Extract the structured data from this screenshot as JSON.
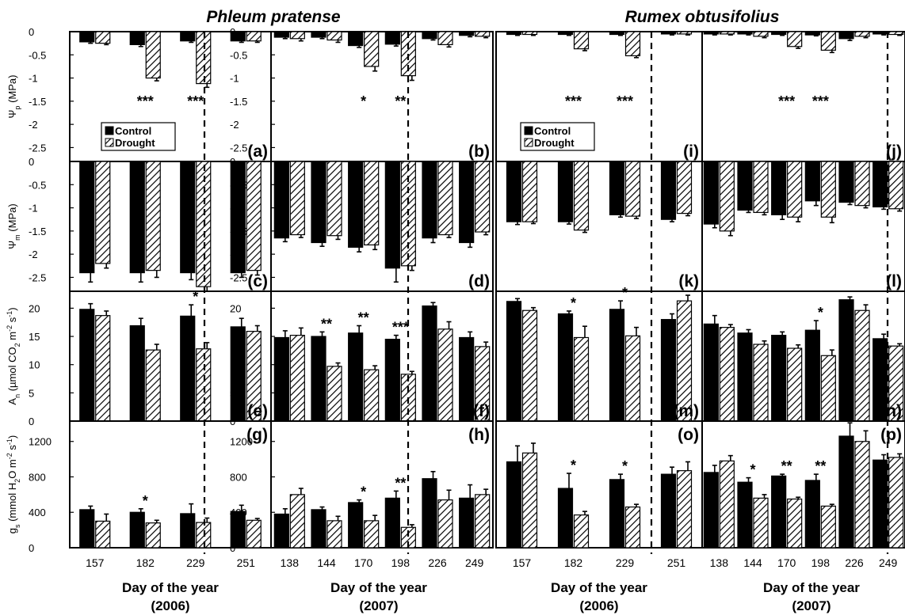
{
  "colors": {
    "control": "#000000",
    "drought_stripe": "#000000",
    "background": "#ffffff"
  },
  "titles": {
    "left": "Phleum pratense",
    "right": "Rumex obtusifolius"
  },
  "ylabels": {
    "psi_p": [
      "Ψ",
      "p",
      " (MPa)"
    ],
    "psi_m": [
      "Ψ",
      "m",
      " (MPa)"
    ],
    "an": [
      "A",
      "n",
      " (µmol CO",
      "2",
      " m",
      "-2",
      " s",
      "-1",
      ")"
    ],
    "gs": [
      "g",
      "s",
      " (mmol H",
      "2",
      "O m",
      "-2",
      " s",
      "-1",
      ")"
    ]
  },
  "xtitles": {
    "y2006": [
      "Day of the year",
      "(2006)"
    ],
    "y2007": [
      "Day of the year",
      "(2007)"
    ]
  },
  "legend": {
    "control": "Control",
    "drought": "Drought"
  },
  "chart_data": [
    {
      "type": "bar",
      "species": "Phleum pratense",
      "year": "2006",
      "days": [
        "157",
        "182",
        "229",
        "251"
      ],
      "rows": [
        {
          "var": "psi_p",
          "panel": "(a)",
          "ylim": [
            -2.8,
            0
          ],
          "ticks": [
            "0",
            "-0.5",
            "-1",
            "-1.5",
            "-2",
            "-2.5"
          ],
          "series": [
            {
              "name": "Control",
              "values": [
                -0.22,
                -0.28,
                -0.2,
                -0.2
              ],
              "err": [
                0.03,
                0.04,
                0.03,
                0.03
              ]
            },
            {
              "name": "Drought",
              "values": [
                -0.25,
                -1.0,
                -1.12,
                -0.2
              ],
              "err": [
                0.03,
                0.06,
                0.08,
                0.03
              ]
            }
          ],
          "stars": [
            "",
            "***",
            "***",
            ""
          ]
        },
        {
          "var": "psi_m",
          "panel": "(c)",
          "ylim": [
            -2.8,
            0
          ],
          "ticks": [
            "0",
            "-0.5",
            "-1",
            "-1.5",
            "-2",
            "-2.5"
          ],
          "series": [
            {
              "name": "Control",
              "values": [
                -2.4,
                -2.4,
                -2.4,
                -2.4
              ],
              "err": [
                0.2,
                0.2,
                0.15,
                0.1
              ]
            },
            {
              "name": "Drought",
              "values": [
                -2.2,
                -2.35,
                -2.7,
                -2.35
              ],
              "err": [
                0.1,
                0.15,
                0.1,
                0.1
              ]
            }
          ],
          "stars": [
            "",
            "",
            "",
            ""
          ]
        },
        {
          "var": "an",
          "panel": "(e)",
          "ylim": [
            0,
            23
          ],
          "ticks": [
            "0",
            "5",
            "10",
            "15",
            "20"
          ],
          "series": [
            {
              "name": "Control",
              "values": [
                19.8,
                16.9,
                18.6,
                16.7
              ],
              "err": [
                1.0,
                1.3,
                2.0,
                1.5
              ]
            },
            {
              "name": "Drought",
              "values": [
                18.7,
                12.6,
                12.8,
                15.9
              ],
              "err": [
                0.8,
                1.0,
                1.1,
                1.0
              ]
            }
          ],
          "stars": [
            "",
            "",
            "*",
            ""
          ]
        },
        {
          "var": "gs",
          "panel": "(g)",
          "ylim": [
            0,
            1430
          ],
          "ticks": [
            "0",
            "400",
            "800",
            "1200"
          ],
          "series": [
            {
              "name": "Control",
              "values": [
                430,
                400,
                385,
                410
              ],
              "err": [
                40,
                40,
                110,
                70
              ]
            },
            {
              "name": "Drought",
              "values": [
                300,
                280,
                285,
                310
              ],
              "err": [
                80,
                30,
                50,
                20
              ]
            }
          ],
          "stars": [
            "",
            "*",
            "",
            ""
          ]
        }
      ]
    },
    {
      "type": "bar",
      "species": "Phleum pratense",
      "year": "2007",
      "days": [
        "138",
        "144",
        "170",
        "198",
        "226",
        "249"
      ],
      "rows": [
        {
          "var": "psi_p",
          "panel": "(b)",
          "ylim": [
            -2.8,
            0
          ],
          "ticks": [
            "0",
            "-0.5",
            "-1",
            "-1.5",
            "-2",
            "-2.5"
          ],
          "series": [
            {
              "name": "Control",
              "values": [
                -0.12,
                -0.12,
                -0.3,
                -0.27,
                -0.15,
                -0.08
              ],
              "err": [
                0.03,
                0.03,
                0.04,
                0.04,
                0.03,
                0.03
              ]
            },
            {
              "name": "Drought",
              "values": [
                -0.15,
                -0.18,
                -0.75,
                -0.95,
                -0.28,
                -0.1
              ],
              "err": [
                0.05,
                0.05,
                0.1,
                0.1,
                0.05,
                0.03
              ]
            }
          ],
          "stars": [
            "",
            "",
            "*",
            "**",
            "",
            ""
          ]
        },
        {
          "var": "psi_m",
          "panel": "(d)",
          "ylim": [
            -2.8,
            0
          ],
          "ticks": [
            "0",
            "-0.5",
            "-1",
            "-1.5",
            "-2",
            "-2.5"
          ],
          "series": [
            {
              "name": "Control",
              "values": [
                -1.65,
                -1.75,
                -1.85,
                -2.3,
                -1.65,
                -1.75
              ],
              "err": [
                0.08,
                0.08,
                0.1,
                0.3,
                0.1,
                0.1
              ]
            },
            {
              "name": "Drought",
              "values": [
                -1.58,
                -1.6,
                -1.8,
                -2.25,
                -1.58,
                -1.52
              ],
              "err": [
                0.06,
                0.08,
                0.1,
                0.1,
                0.06,
                0.06
              ]
            }
          ],
          "stars": [
            "",
            "",
            "",
            "",
            "",
            ""
          ]
        },
        {
          "var": "an",
          "panel": "(f)",
          "ylim": [
            0,
            23
          ],
          "ticks": [
            "0",
            "5",
            "10",
            "15",
            "20"
          ],
          "series": [
            {
              "name": "Control",
              "values": [
                14.8,
                15.0,
                15.6,
                14.5,
                20.4,
                14.8
              ],
              "err": [
                1.2,
                0.8,
                1.3,
                0.7,
                0.6,
                1.0
              ]
            },
            {
              "name": "Drought",
              "values": [
                15.2,
                9.7,
                9.1,
                8.3,
                16.3,
                13.2
              ],
              "err": [
                1.3,
                0.6,
                0.7,
                0.5,
                1.3,
                0.8
              ]
            }
          ],
          "stars": [
            "",
            "**",
            "**",
            "***",
            "",
            ""
          ]
        },
        {
          "var": "gs",
          "panel": "(h)",
          "ylim": [
            0,
            1430
          ],
          "ticks": [
            "0",
            "400",
            "800",
            "1200"
          ],
          "series": [
            {
              "name": "Control",
              "values": [
                380,
                430,
                510,
                560,
                780,
                560
              ],
              "err": [
                60,
                30,
                30,
                80,
                80,
                150
              ]
            },
            {
              "name": "Drought",
              "values": [
                600,
                305,
                305,
                230,
                540,
                600
              ],
              "err": [
                70,
                50,
                60,
                30,
                110,
                60
              ]
            }
          ],
          "stars": [
            "",
            "",
            "*",
            "**",
            "",
            ""
          ]
        }
      ]
    },
    {
      "type": "bar",
      "species": "Rumex obtusifolius",
      "year": "2006",
      "days": [
        "157",
        "182",
        "229",
        "251"
      ],
      "rows": [
        {
          "var": "psi_p",
          "panel": "(i)",
          "ylim": [
            -2.8,
            0
          ],
          "ticks": [],
          "series": [
            {
              "name": "Control",
              "values": [
                -0.06,
                -0.06,
                -0.06,
                -0.05
              ],
              "err": [
                0.02,
                0.02,
                0.02,
                0.02
              ]
            },
            {
              "name": "Drought",
              "values": [
                -0.06,
                -0.37,
                -0.52,
                -0.05
              ],
              "err": [
                0.02,
                0.04,
                0.04,
                0.02
              ]
            }
          ],
          "stars": [
            "",
            "***",
            "***",
            ""
          ]
        },
        {
          "var": "psi_m",
          "panel": "(k)",
          "ylim": [
            -2.8,
            0
          ],
          "ticks": [],
          "series": [
            {
              "name": "Control",
              "values": [
                -1.3,
                -1.3,
                -1.15,
                -1.25
              ],
              "err": [
                0.06,
                0.05,
                0.05,
                0.05
              ]
            },
            {
              "name": "Drought",
              "values": [
                -1.3,
                -1.48,
                -1.18,
                -1.12
              ],
              "err": [
                0.04,
                0.05,
                0.05,
                0.05
              ]
            }
          ],
          "stars": [
            "",
            "",
            "",
            ""
          ]
        },
        {
          "var": "an",
          "panel": "(m)",
          "ylim": [
            0,
            23
          ],
          "ticks": [],
          "series": [
            {
              "name": "Control",
              "values": [
                21.2,
                19.0,
                19.8,
                18.0
              ],
              "err": [
                0.5,
                0.5,
                1.5,
                1.0
              ]
            },
            {
              "name": "Drought",
              "values": [
                19.6,
                14.8,
                15.1,
                21.3
              ],
              "err": [
                0.5,
                2.0,
                1.5,
                1.0
              ]
            }
          ],
          "stars": [
            "",
            "*",
            "*",
            ""
          ]
        },
        {
          "var": "gs",
          "panel": "(o)",
          "ylim": [
            0,
            1430
          ],
          "ticks": [],
          "series": [
            {
              "name": "Control",
              "values": [
                970,
                670,
                770,
                830
              ],
              "err": [
                180,
                170,
                60,
                80
              ]
            },
            {
              "name": "Drought",
              "values": [
                1070,
                370,
                460,
                870
              ],
              "err": [
                110,
                40,
                30,
                100
              ]
            }
          ],
          "stars": [
            "",
            "*",
            "*",
            ""
          ]
        }
      ]
    },
    {
      "type": "bar",
      "species": "Rumex obtusifolius",
      "year": "2007",
      "days": [
        "138",
        "144",
        "170",
        "198",
        "226",
        "249"
      ],
      "rows": [
        {
          "var": "psi_p",
          "panel": "(j)",
          "ylim": [
            -2.8,
            0
          ],
          "ticks": [],
          "series": [
            {
              "name": "Control",
              "values": [
                -0.05,
                -0.05,
                -0.06,
                -0.07,
                -0.15,
                -0.05
              ],
              "err": [
                0.02,
                0.02,
                0.02,
                0.02,
                0.04,
                0.02
              ]
            },
            {
              "name": "Drought",
              "values": [
                -0.05,
                -0.1,
                -0.32,
                -0.4,
                -0.1,
                -0.06
              ],
              "err": [
                0.02,
                0.03,
                0.04,
                0.05,
                0.03,
                0.02
              ]
            }
          ],
          "stars": [
            "",
            "",
            "***",
            "***",
            "",
            ""
          ]
        },
        {
          "var": "psi_m",
          "panel": "(l)",
          "ylim": [
            -2.8,
            0
          ],
          "ticks": [],
          "series": [
            {
              "name": "Control",
              "values": [
                -1.35,
                -1.05,
                -1.15,
                -0.85,
                -0.88,
                -0.98
              ],
              "err": [
                0.08,
                0.05,
                0.1,
                0.1,
                0.05,
                0.05
              ]
            },
            {
              "name": "Drought",
              "values": [
                -1.5,
                -1.1,
                -1.2,
                -1.2,
                -0.95,
                -1.02
              ],
              "err": [
                0.1,
                0.05,
                0.1,
                0.12,
                0.05,
                0.05
              ]
            }
          ],
          "stars": [
            "",
            "",
            "",
            "",
            "",
            ""
          ]
        },
        {
          "var": "an",
          "panel": "(n)",
          "ylim": [
            0,
            23
          ],
          "ticks": [],
          "series": [
            {
              "name": "Control",
              "values": [
                17.2,
                15.6,
                15.2,
                16.1,
                21.5,
                14.6
              ],
              "err": [
                1.5,
                0.6,
                0.6,
                1.7,
                0.5,
                0.8
              ]
            },
            {
              "name": "Drought",
              "values": [
                16.6,
                13.6,
                12.9,
                11.6,
                19.6,
                13.3
              ],
              "err": [
                0.5,
                0.6,
                0.6,
                1.0,
                1.0,
                0.4
              ]
            }
          ],
          "stars": [
            "",
            "",
            "",
            "*",
            "",
            ""
          ]
        },
        {
          "var": "gs",
          "panel": "(p)",
          "ylim": [
            0,
            1430
          ],
          "ticks": [],
          "series": [
            {
              "name": "Control",
              "values": [
                850,
                740,
                810,
                760,
                1260,
                990
              ],
              "err": [
                80,
                50,
                20,
                70,
                150,
                60
              ]
            },
            {
              "name": "Drought",
              "values": [
                980,
                560,
                550,
                470,
                1200,
                1020
              ],
              "err": [
                60,
                40,
                20,
                20,
                120,
                40
              ]
            }
          ],
          "stars": [
            "",
            "*",
            "**",
            "**",
            "",
            ""
          ]
        }
      ]
    }
  ]
}
